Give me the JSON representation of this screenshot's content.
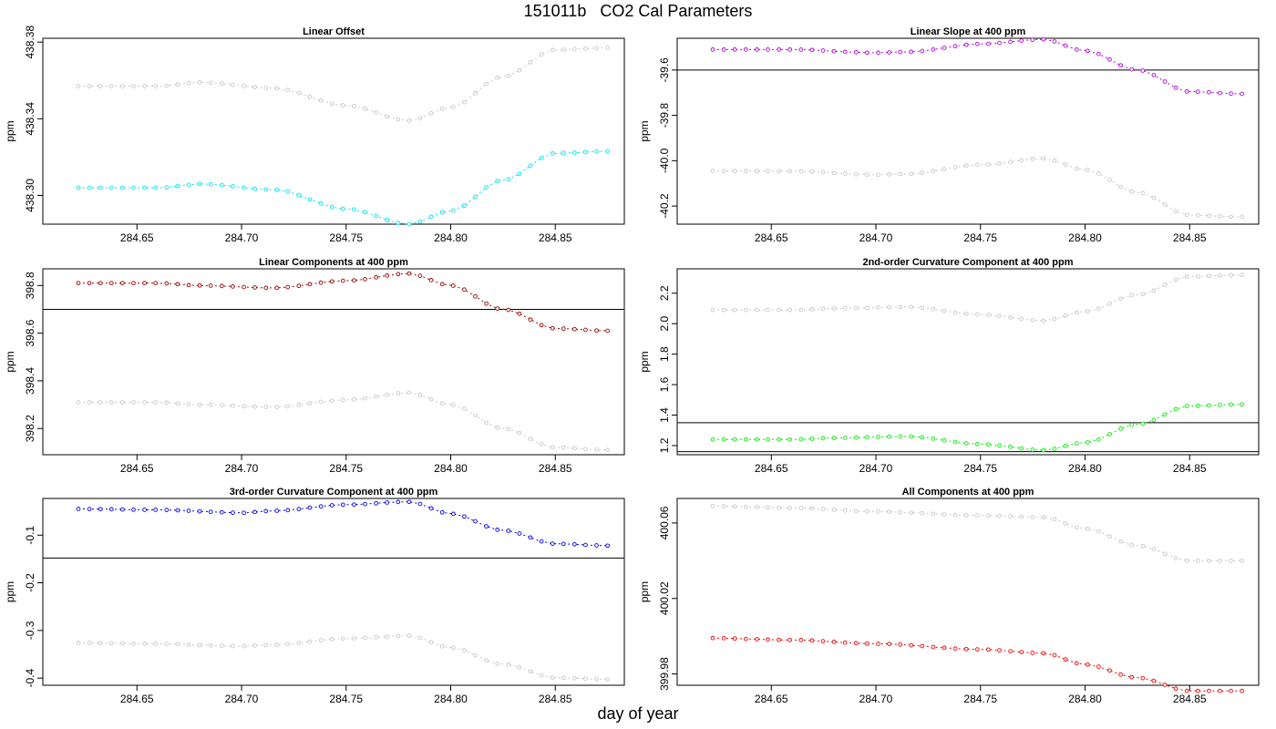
{
  "figure": {
    "title": "151011b   CO2 Cal Parameters",
    "xlabel": "day of year"
  },
  "colors": {
    "gray": "#c8c8c8",
    "cyan": "#00e5ee",
    "magenta": "#b300d6",
    "darkred": "#990000",
    "green": "#00ee00",
    "blue": "#0000ee",
    "red": "#ee0000",
    "axis": "#000000"
  },
  "chart_data": [
    {
      "type": "line",
      "title": "Linear Offset",
      "ylabel": "ppm",
      "xlim": [
        284.605,
        284.883
      ],
      "ylim": [
        438.285,
        438.382
      ],
      "xticks": [
        "284.65",
        "284.70",
        "284.75",
        "284.80",
        "284.85"
      ],
      "yticks": [
        "438.30",
        "438.34",
        "438.38"
      ],
      "hlines": [],
      "series": [
        {
          "name": "gray",
          "color": "#c8c8c8",
          "anchors": [
            [
              284.62,
              438.357
            ],
            [
              284.66,
              438.357
            ],
            [
              284.68,
              438.359
            ],
            [
              284.715,
              438.356
            ],
            [
              284.75,
              438.347
            ],
            [
              284.78,
              438.339
            ],
            [
              284.8,
              438.346
            ],
            [
              284.825,
              438.362
            ],
            [
              284.85,
              438.376
            ],
            [
              284.875,
              438.377
            ]
          ]
        },
        {
          "name": "cyan",
          "color": "#00e5ee",
          "anchors": [
            [
              284.62,
              438.304
            ],
            [
              284.66,
              438.304
            ],
            [
              284.68,
              438.306
            ],
            [
              284.715,
              438.303
            ],
            [
              284.75,
              438.293
            ],
            [
              284.78,
              438.285
            ],
            [
              284.8,
              438.292
            ],
            [
              284.825,
              438.308
            ],
            [
              284.85,
              438.322
            ],
            [
              284.875,
              438.323
            ]
          ]
        }
      ]
    },
    {
      "type": "line",
      "title": "Linear Slope at 400 ppm",
      "ylabel": "ppm",
      "xlim": [
        284.605,
        284.883
      ],
      "ylim": [
        -40.28,
        -39.46
      ],
      "xticks": [
        "284.65",
        "284.70",
        "284.75",
        "284.80",
        "284.85"
      ],
      "yticks": [
        "-40.2",
        "-40.0",
        "-39.8",
        "-39.6"
      ],
      "hlines": [
        -39.6
      ],
      "series": [
        {
          "name": "magenta",
          "color": "#b300d6",
          "anchors": [
            [
              284.62,
              -39.51
            ],
            [
              284.66,
              -39.51
            ],
            [
              284.7,
              -39.524
            ],
            [
              284.715,
              -39.52
            ],
            [
              284.75,
              -39.485
            ],
            [
              284.78,
              -39.465
            ],
            [
              284.8,
              -39.515
            ],
            [
              284.825,
              -39.6
            ],
            [
              284.85,
              -39.695
            ],
            [
              284.875,
              -39.705
            ]
          ]
        },
        {
          "name": "gray",
          "color": "#c8c8c8",
          "anchors": [
            [
              284.62,
              -40.045
            ],
            [
              284.66,
              -40.046
            ],
            [
              284.7,
              -40.062
            ],
            [
              284.715,
              -40.058
            ],
            [
              284.75,
              -40.018
            ],
            [
              284.78,
              -39.99
            ],
            [
              284.8,
              -40.04
            ],
            [
              284.825,
              -40.14
            ],
            [
              284.85,
              -40.24
            ],
            [
              284.875,
              -40.248
            ]
          ]
        }
      ]
    },
    {
      "type": "line",
      "title": "Linear Components at 400 ppm",
      "ylabel": "ppm",
      "xlim": [
        284.605,
        284.883
      ],
      "ylim": [
        398.09,
        398.87
      ],
      "xticks": [
        "284.65",
        "284.70",
        "284.75",
        "284.80",
        "284.85"
      ],
      "yticks": [
        "398.2",
        "398.4",
        "398.6",
        "398.8"
      ],
      "hlines": [
        398.7
      ],
      "series": [
        {
          "name": "darkred",
          "color": "#990000",
          "anchors": [
            [
              284.62,
              398.81
            ],
            [
              284.66,
              398.81
            ],
            [
              284.68,
              398.8
            ],
            [
              284.715,
              398.79
            ],
            [
              284.75,
              398.82
            ],
            [
              284.78,
              398.85
            ],
            [
              284.8,
              398.8
            ],
            [
              284.825,
              398.7
            ],
            [
              284.85,
              398.62
            ],
            [
              284.875,
              398.61
            ]
          ]
        },
        {
          "name": "gray",
          "color": "#c8c8c8",
          "anchors": [
            [
              284.62,
              398.31
            ],
            [
              284.66,
              398.31
            ],
            [
              284.68,
              398.3
            ],
            [
              284.715,
              398.29
            ],
            [
              284.75,
              398.32
            ],
            [
              284.78,
              398.35
            ],
            [
              284.8,
              398.3
            ],
            [
              284.825,
              398.2
            ],
            [
              284.85,
              398.12
            ],
            [
              284.875,
              398.11
            ]
          ]
        }
      ]
    },
    {
      "type": "line",
      "title": "2nd-order Curvature Component at 400 ppm",
      "ylabel": "ppm",
      "xlim": [
        284.605,
        284.883
      ],
      "ylim": [
        1.14,
        2.36
      ],
      "xticks": [
        "284.65",
        "284.70",
        "284.75",
        "284.80",
        "284.85"
      ],
      "yticks": [
        "1.2",
        "1.4",
        "1.6",
        "1.8",
        "2.0",
        "2.2"
      ],
      "hlines": [
        1.35,
        1.16
      ],
      "series": [
        {
          "name": "gray",
          "color": "#c8c8c8",
          "anchors": [
            [
              284.62,
              2.09
            ],
            [
              284.66,
              2.09
            ],
            [
              284.68,
              2.1
            ],
            [
              284.715,
              2.11
            ],
            [
              284.75,
              2.06
            ],
            [
              284.78,
              2.02
            ],
            [
              284.8,
              2.08
            ],
            [
              284.825,
              2.19
            ],
            [
              284.85,
              2.31
            ],
            [
              284.875,
              2.32
            ]
          ]
        },
        {
          "name": "green",
          "color": "#00ee00",
          "anchors": [
            [
              284.62,
              1.24
            ],
            [
              284.66,
              1.24
            ],
            [
              284.68,
              1.25
            ],
            [
              284.715,
              1.26
            ],
            [
              284.75,
              1.21
            ],
            [
              284.78,
              1.17
            ],
            [
              284.8,
              1.22
            ],
            [
              284.825,
              1.34
            ],
            [
              284.85,
              1.46
            ],
            [
              284.875,
              1.47
            ]
          ]
        }
      ]
    },
    {
      "type": "line",
      "title": "3rd-order Curvature Component at 400 ppm",
      "ylabel": "ppm",
      "xlim": [
        284.605,
        284.883
      ],
      "ylim": [
        -0.415,
        -0.023
      ],
      "xticks": [
        "284.65",
        "284.70",
        "284.75",
        "284.80",
        "284.85"
      ],
      "yticks": [
        "-0.4",
        "-0.3",
        "-0.2",
        "-0.1"
      ],
      "hlines": [
        -0.148
      ],
      "series": [
        {
          "name": "blue",
          "color": "#0000ee",
          "anchors": [
            [
              284.62,
              -0.045
            ],
            [
              284.66,
              -0.047
            ],
            [
              284.7,
              -0.053
            ],
            [
              284.715,
              -0.049
            ],
            [
              284.75,
              -0.036
            ],
            [
              284.78,
              -0.03
            ],
            [
              284.8,
              -0.055
            ],
            [
              284.825,
              -0.09
            ],
            [
              284.85,
              -0.118
            ],
            [
              284.875,
              -0.122
            ]
          ]
        },
        {
          "name": "gray",
          "color": "#c8c8c8",
          "anchors": [
            [
              284.62,
              -0.326
            ],
            [
              284.66,
              -0.328
            ],
            [
              284.7,
              -0.333
            ],
            [
              284.715,
              -0.33
            ],
            [
              284.75,
              -0.317
            ],
            [
              284.78,
              -0.311
            ],
            [
              284.8,
              -0.336
            ],
            [
              284.825,
              -0.371
            ],
            [
              284.85,
              -0.399
            ],
            [
              284.875,
              -0.403
            ]
          ]
        }
      ]
    },
    {
      "type": "line",
      "title": "All Components at 400 ppm",
      "ylabel": "ppm",
      "xlim": [
        284.605,
        284.883
      ],
      "ylim": [
        399.974,
        400.073
      ],
      "xticks": [
        "284.65",
        "284.70",
        "284.75",
        "284.80",
        "284.85"
      ],
      "yticks": [
        "399.98",
        "400.02",
        "400.06"
      ],
      "hlines": [],
      "series": [
        {
          "name": "gray",
          "color": "#c8c8c8",
          "anchors": [
            [
              284.62,
              400.069
            ],
            [
              284.66,
              400.068
            ],
            [
              284.7,
              400.066
            ],
            [
              284.75,
              400.064
            ],
            [
              284.78,
              400.063
            ],
            [
              284.8,
              400.057
            ],
            [
              284.825,
              400.048
            ],
            [
              284.85,
              400.04
            ],
            [
              284.875,
              400.04
            ]
          ]
        },
        {
          "name": "red",
          "color": "#ee0000",
          "anchors": [
            [
              284.62,
              399.999
            ],
            [
              284.66,
              399.998
            ],
            [
              284.7,
              399.996
            ],
            [
              284.75,
              399.993
            ],
            [
              284.78,
              399.991
            ],
            [
              284.8,
              399.985
            ],
            [
              284.825,
              399.978
            ],
            [
              284.85,
              399.971
            ],
            [
              284.875,
              399.971
            ]
          ]
        }
      ]
    }
  ]
}
